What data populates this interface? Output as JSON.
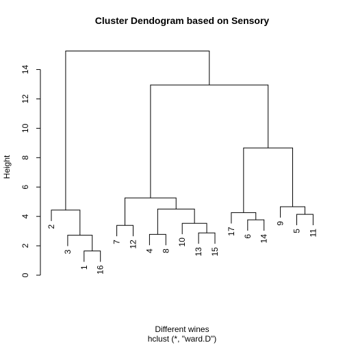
{
  "chart_data": {
    "type": "dendrogram",
    "title": "Cluster Dendogram based on Sensory",
    "xlabel": "Different wines",
    "sublabel": "hclust (*, \"ward.D\")",
    "ylabel": "Height",
    "ylim": [
      0,
      15.4
    ],
    "yticks": [
      0,
      2,
      4,
      6,
      8,
      10,
      12,
      14
    ],
    "leaf_order": [
      "2",
      "3",
      "1",
      "16",
      "7",
      "12",
      "4",
      "8",
      "10",
      "13",
      "15",
      "17",
      "6",
      "14",
      "9",
      "5",
      "11"
    ],
    "label_offset": 0.74,
    "merges": [
      {
        "left": "1",
        "right": "16",
        "height": 1.65
      },
      {
        "left": "3",
        "right": "m1",
        "height": 2.72
      },
      {
        "left": "2",
        "right": "m2",
        "height": 4.43
      },
      {
        "left": "7",
        "right": "12",
        "height": 3.39
      },
      {
        "left": "4",
        "right": "8",
        "height": 2.78
      },
      {
        "left": "13",
        "right": "15",
        "height": 2.88
      },
      {
        "left": "10",
        "right": "m6",
        "height": 3.53
      },
      {
        "left": "m5",
        "right": "m7",
        "height": 4.5
      },
      {
        "left": "m4",
        "right": "m8",
        "height": 5.26
      },
      {
        "left": "6",
        "right": "14",
        "height": 3.77
      },
      {
        "left": "17",
        "right": "m10",
        "height": 4.26
      },
      {
        "left": "5",
        "right": "11",
        "height": 4.14
      },
      {
        "left": "9",
        "right": "m12",
        "height": 4.66
      },
      {
        "left": "m11",
        "right": "m13",
        "height": 8.66
      },
      {
        "left": "m9",
        "right": "m14",
        "height": 12.95
      },
      {
        "left": "m3",
        "right": "m15",
        "height": 15.26
      }
    ]
  }
}
